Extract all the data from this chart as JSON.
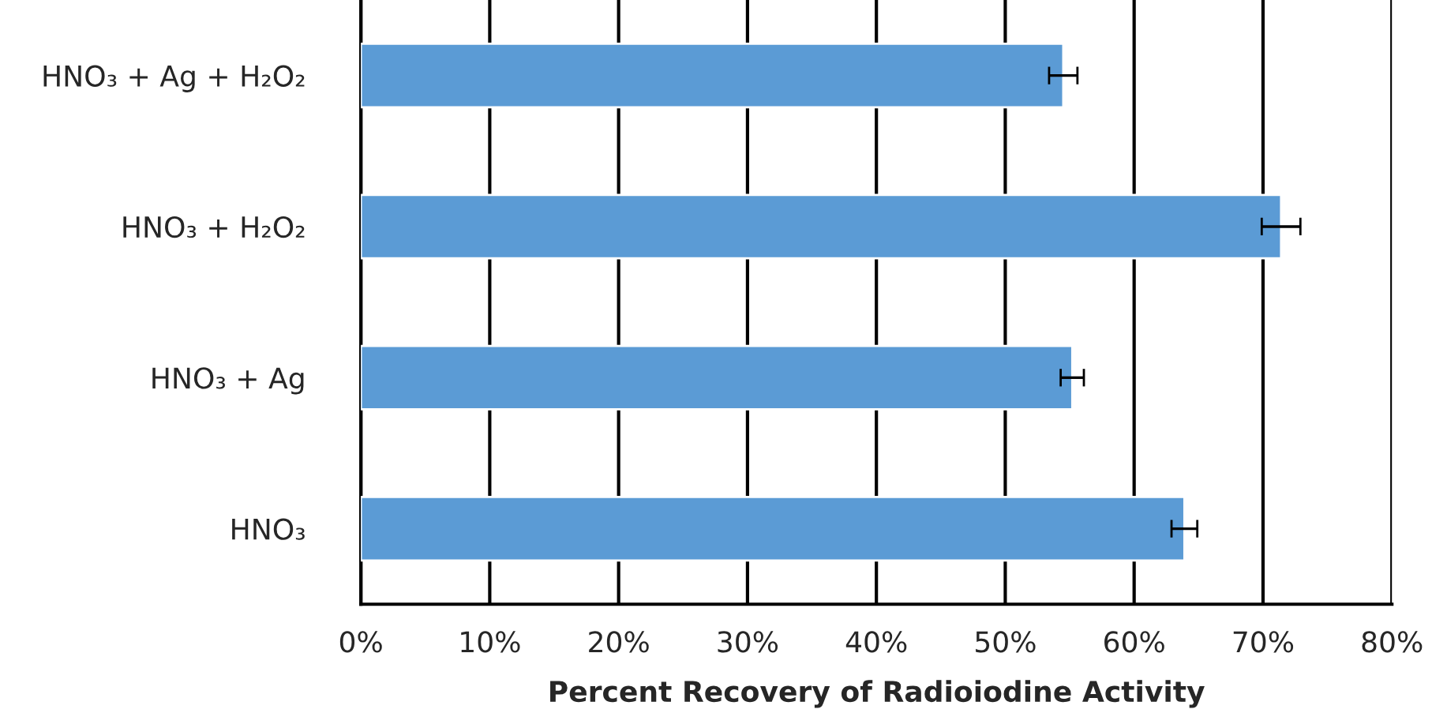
{
  "chart_data": {
    "type": "bar",
    "orientation": "horizontal",
    "xlabel": "Percent Recovery of Radioiodine Activity",
    "categories": [
      "HNO₃ + Ag + H₂O₂",
      "HNO₃ + H₂O₂",
      "HNO₃ + Ag",
      "HNO₃"
    ],
    "values": [
      54.5,
      71.4,
      55.2,
      63.9
    ],
    "errors": [
      1.1,
      1.5,
      0.9,
      1.0
    ],
    "color": "#5b9bd5",
    "xlim": [
      0,
      80
    ],
    "xticks": [
      {
        "value": 0,
        "label": "0%"
      },
      {
        "value": 10,
        "label": "10%"
      },
      {
        "value": 20,
        "label": "20%"
      },
      {
        "value": 30,
        "label": "30%"
      },
      {
        "value": 40,
        "label": "40%"
      },
      {
        "value": 50,
        "label": "50%"
      },
      {
        "value": 60,
        "label": "60%"
      },
      {
        "value": 70,
        "label": "70%"
      },
      {
        "value": 80,
        "label": "80%"
      }
    ],
    "grid": "x"
  }
}
